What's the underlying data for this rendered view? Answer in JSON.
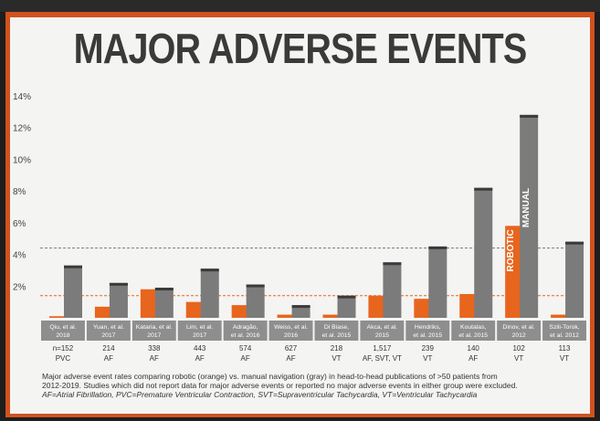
{
  "title": "MAJOR ADVERSE EVENTS",
  "chart_data": {
    "type": "bar",
    "title": "MAJOR ADVERSE EVENTS",
    "xlabel": "",
    "ylabel": "",
    "ylim": [
      0,
      14
    ],
    "yticks": [
      "14%",
      "12%",
      "10%",
      "8%",
      "6%",
      "4%",
      "2%"
    ],
    "ytick_values": [
      14,
      12,
      10,
      8,
      6,
      4,
      2
    ],
    "categories": [
      [
        "Qiu, et al.",
        "2018"
      ],
      [
        "Yuan, et al.",
        "2017"
      ],
      [
        "Kataria, et al.",
        "2017"
      ],
      [
        "Lim, et al.",
        "2017"
      ],
      [
        "Adragão,",
        "et al. 2016"
      ],
      [
        "Weiss, et al.",
        "2016"
      ],
      [
        "Di Biase,",
        "et al. 2015"
      ],
      [
        "Akca, et al.",
        "2015"
      ],
      [
        "Hendriks,",
        "et al. 2015"
      ],
      [
        "Koutalas,",
        "et al. 2015"
      ],
      [
        "Dinov, et al.",
        "2012"
      ],
      [
        "Szili-Torok,",
        "et al. 2012"
      ]
    ],
    "n_values": [
      "n=152",
      "214",
      "338",
      "443",
      "574",
      "627",
      "218",
      "1,517",
      "239",
      "140",
      "102",
      "113"
    ],
    "arrhythmia": [
      "PVC",
      "AF",
      "AF",
      "AF",
      "AF",
      "AF",
      "VT",
      "AF, SVT, VT",
      "VT",
      "AF",
      "VT",
      "VT"
    ],
    "series": [
      {
        "name": "ROBOTIC",
        "color": "#e8651e",
        "values": [
          0.1,
          0.7,
          1.8,
          1.0,
          0.8,
          0.2,
          0.2,
          1.4,
          1.2,
          1.5,
          5.8,
          0.2
        ]
      },
      {
        "name": "MANUAL",
        "color": "#6f6f6f",
        "values": [
          3.3,
          2.2,
          1.9,
          3.1,
          2.1,
          0.8,
          1.4,
          3.5,
          4.5,
          8.2,
          12.8,
          4.8
        ]
      }
    ],
    "reference_lines": [
      {
        "color": "#7a7a7a",
        "value": 4.4
      },
      {
        "color": "#e8651e",
        "value": 1.4
      }
    ],
    "legend": "inside-bars"
  },
  "footnote": {
    "line1": "Major adverse event rates comparing robotic (orange) vs. manual navigation (gray) in head-to-head publications of >50 patients from",
    "line2": "2012-2019. Studies which did not report data for major adverse events or reported no major adverse events in either group were excluded.",
    "line3": "AF=Atrial Fibrillation, PVC=Premature Ventricular Contraction, SVT=Supraventricular Tachycardia, VT=Ventricular Tachycardia"
  }
}
